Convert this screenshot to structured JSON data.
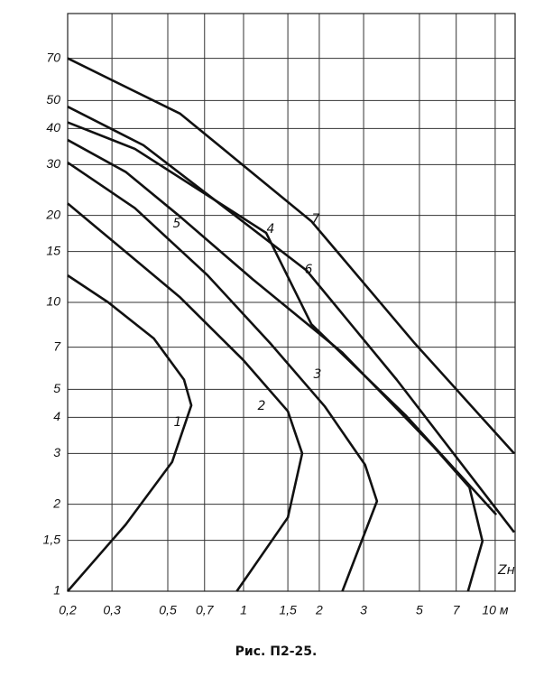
{
  "chart_data": {
    "type": "line",
    "caption": "Рис. П2-25.",
    "x_label": "Zн",
    "log_x": true,
    "log_y": true,
    "grid": true,
    "xlim": [
      0.2,
      12
    ],
    "ylim": [
      1,
      100
    ],
    "xticks": [
      {
        "value": 0.2,
        "label": "0,2"
      },
      {
        "value": 0.3,
        "label": "0,3"
      },
      {
        "value": 0.5,
        "label": "0,5"
      },
      {
        "value": 0.7,
        "label": "0,7"
      },
      1,
      {
        "value": 1.5,
        "label": "1,5"
      },
      2,
      3,
      5,
      7,
      {
        "value": 10,
        "label": "10 м"
      }
    ],
    "yticks": [
      1,
      {
        "value": 1.5,
        "label": "1,5"
      },
      2,
      3,
      4,
      5,
      7,
      10,
      15,
      20,
      30,
      40,
      50,
      70
    ],
    "series": [
      {
        "name": "1",
        "color": "#111111",
        "x": [
          0.2,
          0.34,
          0.52,
          0.62,
          0.58,
          0.44,
          0.29,
          0.2
        ],
        "values": [
          1,
          1.7,
          2.8,
          4.4,
          5.4,
          7.5,
          10,
          12.4
        ]
      },
      {
        "name": "2",
        "color": "#111111",
        "x": [
          0.94,
          1.5,
          1.71,
          1.5,
          1.0,
          0.56,
          0.31,
          0.2
        ],
        "values": [
          1,
          1.8,
          3,
          4.2,
          6.3,
          10.4,
          16,
          22
        ]
      },
      {
        "name": "3",
        "color": "#111111",
        "x": [
          2.47,
          3.39,
          3.04,
          2.1,
          1.28,
          0.72,
          0.37,
          0.2
        ],
        "values": [
          1,
          2.05,
          2.74,
          4.37,
          7.2,
          12.4,
          21.2,
          30.5
        ]
      },
      {
        "name": "4",
        "color": "#111111",
        "x": [
          0.2,
          0.37,
          1.23,
          1.86,
          4.4,
          10.1
        ],
        "values": [
          42,
          34,
          17.4,
          8.4,
          4.07,
          1.84
        ]
      },
      {
        "name": "5",
        "color": "#111111",
        "x": [
          0.2,
          0.34,
          0.56,
          1.09,
          2.47,
          5.7,
          7.9,
          8.9,
          7.8
        ],
        "values": [
          36.5,
          28.3,
          19.8,
          12,
          6.7,
          3.16,
          2.29,
          1.49,
          1
        ]
      },
      {
        "name": "6",
        "color": "#111111",
        "x": [
          0.2,
          0.4,
          1.78,
          4.06,
          11.9
        ],
        "values": [
          47.6,
          35,
          12.9,
          5.4,
          1.6
        ]
      },
      {
        "name": "7",
        "color": "#111111",
        "x": [
          0.2,
          0.56,
          1.86,
          4.8,
          11.9
        ],
        "values": [
          70,
          45,
          19.1,
          7.2,
          3
        ]
      }
    ]
  }
}
